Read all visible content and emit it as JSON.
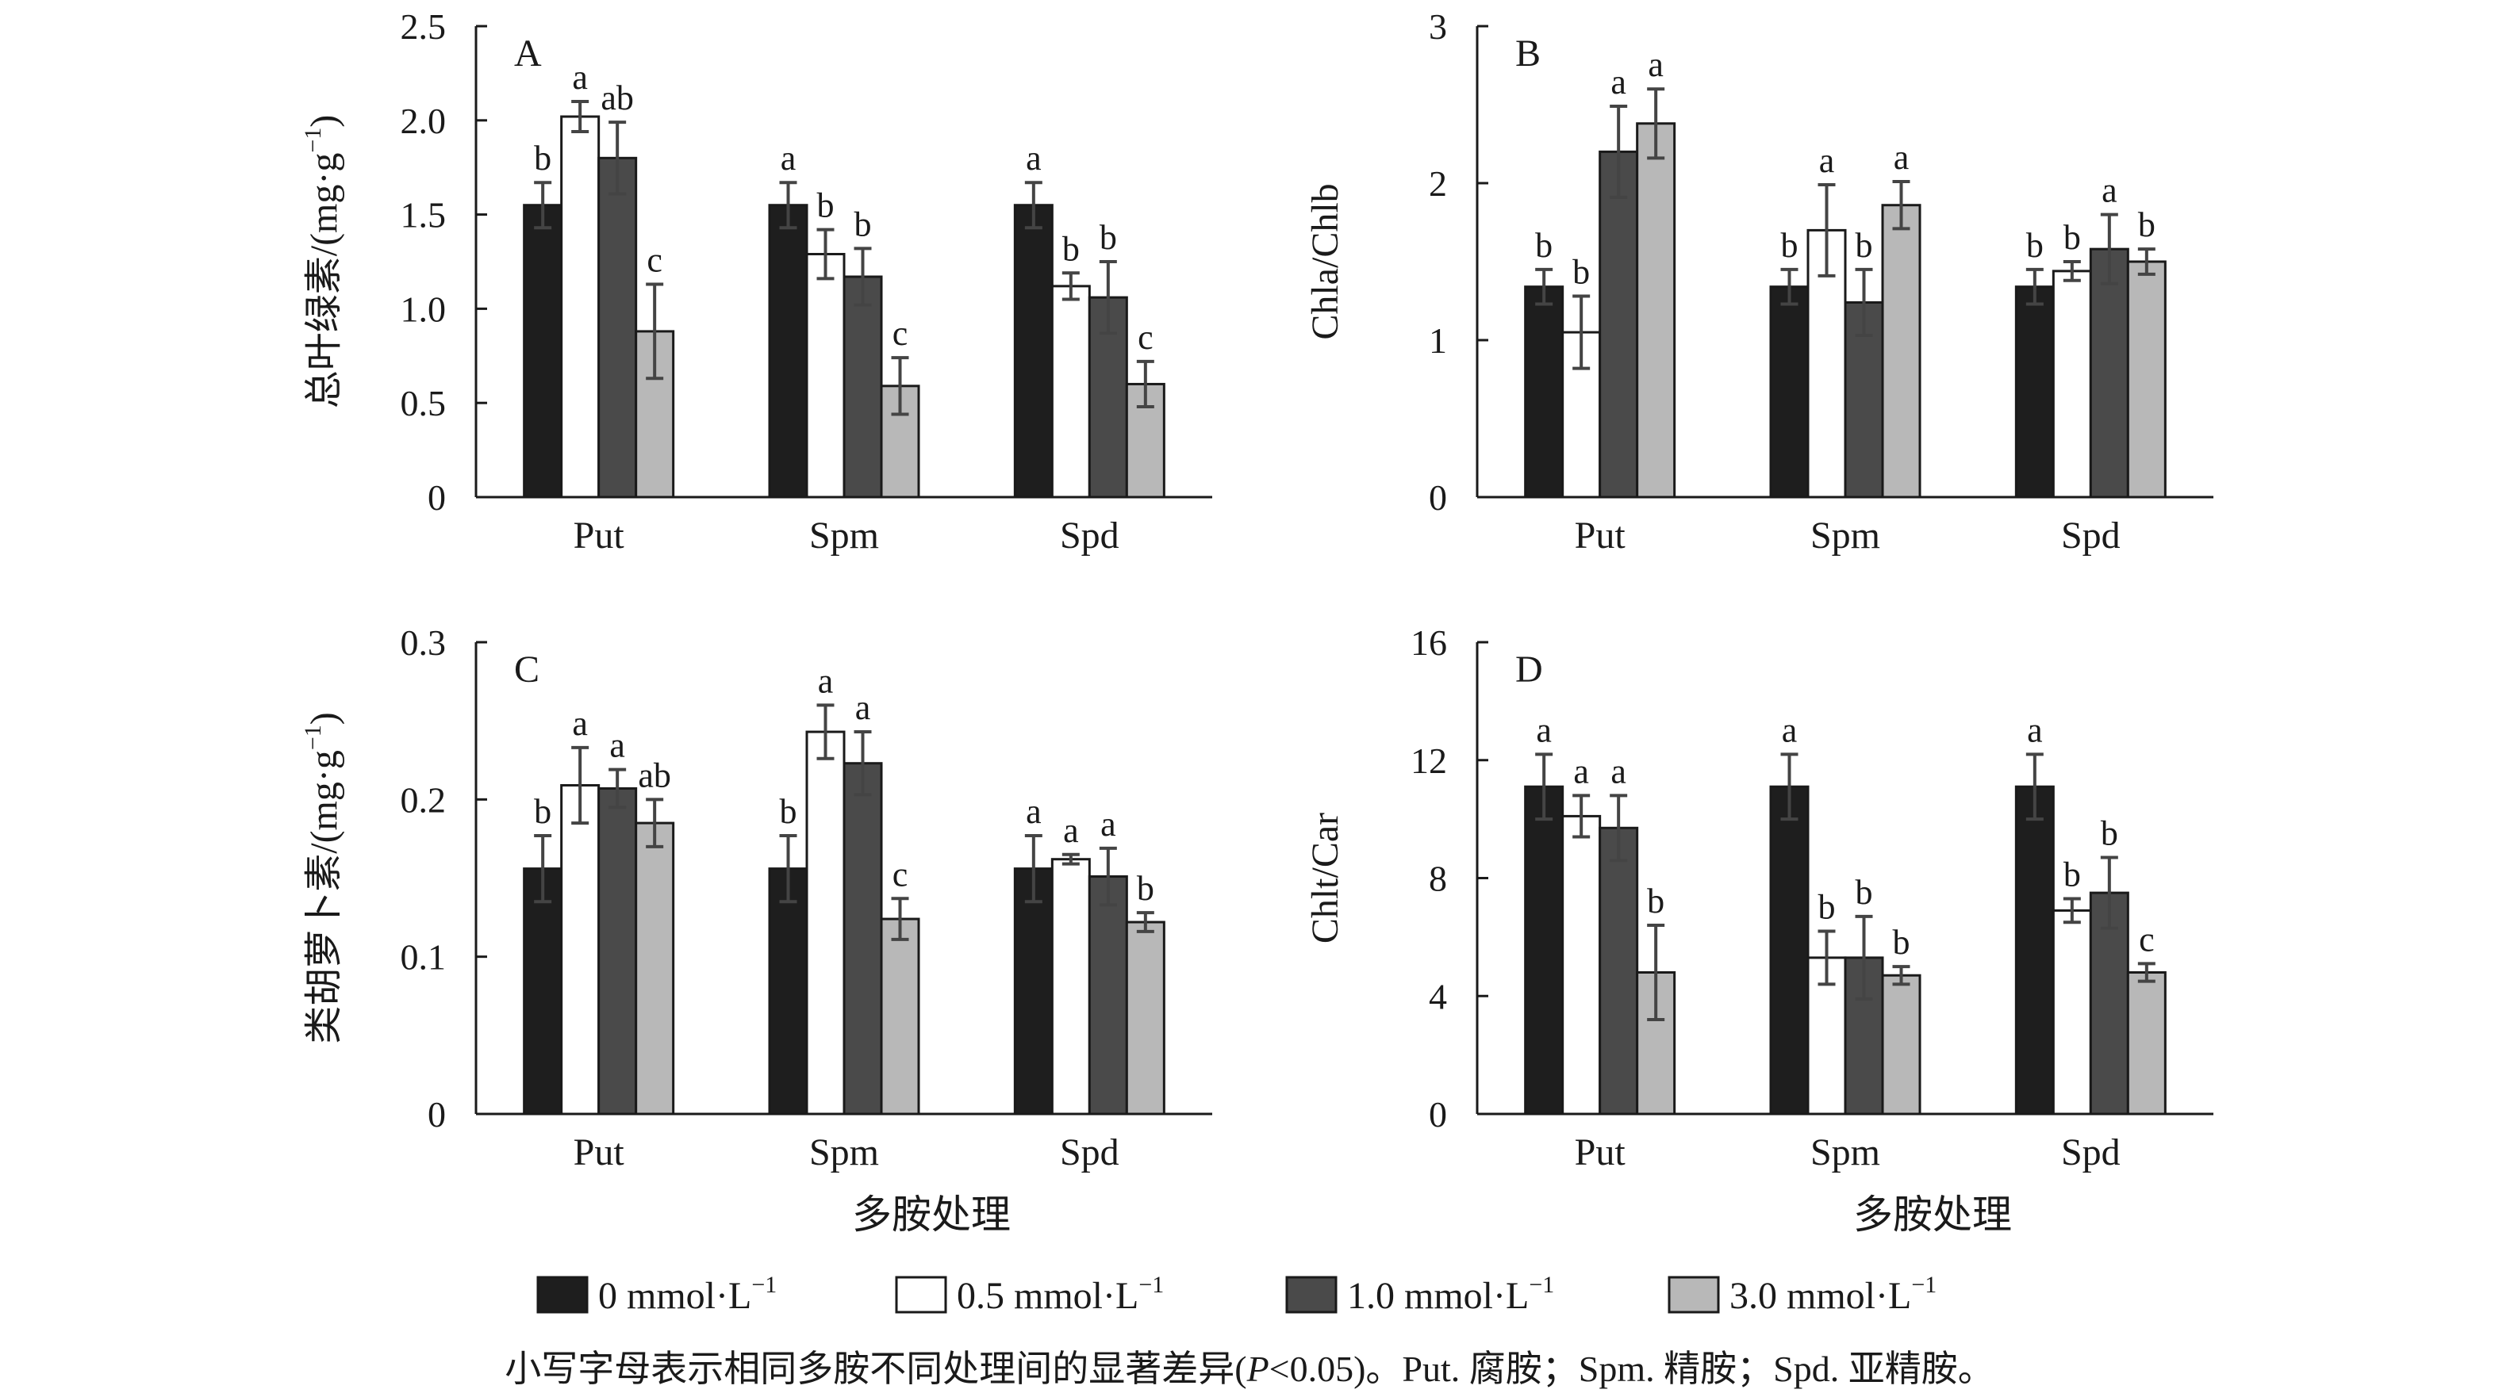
{
  "chart_data": [
    {
      "type": "bar",
      "panel_label": "A",
      "ylabel_main": "总叶绿素",
      "ylabel_unit": "/(mg·g",
      "ylabel_sup": "−1",
      "ylabel_close": ")",
      "xlabel": "",
      "ylim": [
        0,
        2.5
      ],
      "yticks": [
        "0",
        "0.5",
        "1.0",
        "1.5",
        "2.0",
        "2.5"
      ],
      "categories": [
        "Put",
        "Spm",
        "Spd"
      ],
      "series": [
        {
          "name": "0 mmol·L⁻¹",
          "values": [
            1.55,
            1.55,
            1.55
          ],
          "errors": [
            0.12,
            0.12,
            0.12
          ],
          "letters": [
            "b",
            "a",
            "a"
          ]
        },
        {
          "name": "0.5 mmol·L⁻¹",
          "values": [
            2.02,
            1.29,
            1.12
          ],
          "errors": [
            0.08,
            0.13,
            0.07
          ],
          "letters": [
            "a",
            "b",
            "b"
          ]
        },
        {
          "name": "1.0 mmol·L⁻¹",
          "values": [
            1.8,
            1.17,
            1.06
          ],
          "errors": [
            0.19,
            0.15,
            0.19
          ],
          "letters": [
            "ab",
            "b",
            "b"
          ]
        },
        {
          "name": "3.0 mmol·L⁻¹",
          "values": [
            0.88,
            0.59,
            0.6
          ],
          "errors": [
            0.25,
            0.15,
            0.12
          ],
          "letters": [
            "c",
            "c",
            "c"
          ]
        }
      ]
    },
    {
      "type": "bar",
      "panel_label": "B",
      "ylabel_main": "Chla/Chlb",
      "xlabel": "",
      "ylim": [
        0,
        3
      ],
      "yticks": [
        "0",
        "1",
        "2",
        "3"
      ],
      "categories": [
        "Put",
        "Spm",
        "Spd"
      ],
      "series": [
        {
          "name": "0 mmol·L⁻¹",
          "values": [
            1.34,
            1.34,
            1.34
          ],
          "errors": [
            0.11,
            0.11,
            0.11
          ],
          "letters": [
            "b",
            "b",
            "b"
          ]
        },
        {
          "name": "0.5 mmol·L⁻¹",
          "values": [
            1.05,
            1.7,
            1.44
          ],
          "errors": [
            0.23,
            0.29,
            0.06
          ],
          "letters": [
            "b",
            "a",
            "b"
          ]
        },
        {
          "name": "1.0 mmol·L⁻¹",
          "values": [
            2.2,
            1.24,
            1.58
          ],
          "errors": [
            0.29,
            0.21,
            0.22
          ],
          "letters": [
            "a",
            "b",
            "a"
          ]
        },
        {
          "name": "3.0 mmol·L⁻¹",
          "values": [
            2.38,
            1.86,
            1.5
          ],
          "errors": [
            0.22,
            0.15,
            0.08
          ],
          "letters": [
            "a",
            "a",
            "b"
          ]
        }
      ]
    },
    {
      "type": "bar",
      "panel_label": "C",
      "ylabel_main": "类胡萝卜素",
      "ylabel_unit": "/(mg·g",
      "ylabel_sup": "−1",
      "ylabel_close": ")",
      "xlabel": "多胺处理",
      "ylim": [
        0,
        0.3
      ],
      "yticks": [
        "0",
        "0.1",
        "0.2",
        "0.3"
      ],
      "categories": [
        "Put",
        "Spm",
        "Spd"
      ],
      "series": [
        {
          "name": "0 mmol·L⁻¹",
          "values": [
            0.156,
            0.156,
            0.156
          ],
          "errors": [
            0.021,
            0.021,
            0.021
          ],
          "letters": [
            "b",
            "b",
            "a"
          ]
        },
        {
          "name": "0.5 mmol·L⁻¹",
          "values": [
            0.209,
            0.243,
            0.162
          ],
          "errors": [
            0.024,
            0.017,
            0.003
          ],
          "letters": [
            "a",
            "a",
            "a"
          ]
        },
        {
          "name": "1.0 mmol·L⁻¹",
          "values": [
            0.207,
            0.223,
            0.151
          ],
          "errors": [
            0.012,
            0.02,
            0.018
          ],
          "letters": [
            "a",
            "a",
            "a"
          ]
        },
        {
          "name": "3.0 mmol·L⁻¹",
          "values": [
            0.185,
            0.124,
            0.122
          ],
          "errors": [
            0.015,
            0.013,
            0.006
          ],
          "letters": [
            "ab",
            "c",
            "b"
          ]
        }
      ]
    },
    {
      "type": "bar",
      "panel_label": "D",
      "ylabel_main": "Chlt/Car",
      "xlabel": "多胺处理",
      "ylim": [
        0,
        16
      ],
      "yticks": [
        "0",
        "4",
        "8",
        "12",
        "16"
      ],
      "categories": [
        "Put",
        "Spm",
        "Spd"
      ],
      "series": [
        {
          "name": "0 mmol·L⁻¹",
          "values": [
            11.1,
            11.1,
            11.1
          ],
          "errors": [
            1.1,
            1.1,
            1.1
          ],
          "letters": [
            "a",
            "a",
            "a"
          ]
        },
        {
          "name": "0.5 mmol·L⁻¹",
          "values": [
            10.1,
            5.3,
            6.9
          ],
          "errors": [
            0.7,
            0.9,
            0.4
          ],
          "letters": [
            "a",
            "b",
            "b"
          ]
        },
        {
          "name": "1.0 mmol·L⁻¹",
          "values": [
            9.7,
            5.3,
            7.5
          ],
          "errors": [
            1.1,
            1.4,
            1.2
          ],
          "letters": [
            "a",
            "b",
            "b"
          ]
        },
        {
          "name": "3.0 mmol·L⁻¹",
          "values": [
            4.8,
            4.7,
            4.8
          ],
          "errors": [
            1.6,
            0.3,
            0.3
          ],
          "letters": [
            "b",
            "b",
            "c"
          ]
        }
      ]
    }
  ],
  "legend": {
    "placement": "bottom",
    "items": [
      {
        "value": "0",
        "unit": " mmol·L",
        "sup": "−1",
        "color": "#1e1e1e"
      },
      {
        "value": "0.5",
        "unit": " mmol·L",
        "sup": "−1",
        "color": "#ffffff"
      },
      {
        "value": "1.0",
        "unit": " mmol·L",
        "sup": "−1",
        "color": "#4a4a4a"
      },
      {
        "value": "3.0",
        "unit": " mmol·L",
        "sup": "−1",
        "color": "#b8b8b8"
      }
    ]
  },
  "caption": {
    "before": "小写字母表示相同多胺不同处理间的显著差异(",
    "italic": "P",
    "after": "<0.05)。Put. 腐胺；Spm. 精胺；Spd. 亚精胺。"
  },
  "colors": {
    "bar_edge": "#1a1a1a",
    "error_bar": "#444444",
    "axis": "#1a1a1a"
  }
}
